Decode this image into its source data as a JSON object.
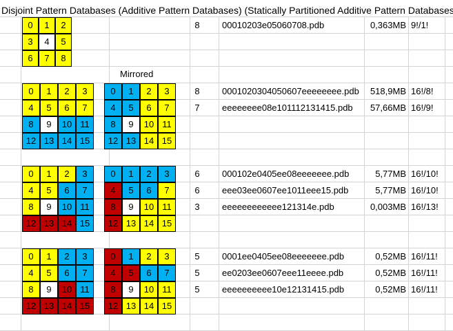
{
  "title": "Disjoint Pattern Databases (Additive Pattern Databases) (Statically Partitioned Additive Pattern Databases)",
  "mirrored_label": "Mirrored",
  "colors": {
    "yellow": "#ffff00",
    "blue": "#00b0f0",
    "red": "#c00000",
    "white": "#ffffff"
  },
  "puzzles": [
    {
      "id": "p8",
      "size": 3,
      "labels": [
        "0",
        "1",
        "2",
        "3",
        "4",
        "5",
        "6",
        "7",
        "8"
      ],
      "colors": [
        "y",
        "y",
        "y",
        "y",
        "w",
        "y",
        "y",
        "y",
        "y"
      ]
    },
    {
      "id": "g2a",
      "size": 4,
      "labels": [
        "0",
        "1",
        "2",
        "3",
        "4",
        "5",
        "6",
        "7",
        "8",
        "9",
        "10",
        "11",
        "12",
        "13",
        "14",
        "15"
      ],
      "colors": [
        "y",
        "y",
        "y",
        "y",
        "y",
        "y",
        "y",
        "y",
        "b",
        "w",
        "b",
        "b",
        "b",
        "b",
        "b",
        "b"
      ]
    },
    {
      "id": "g2b",
      "size": 4,
      "labels": [
        "0",
        "1",
        "2",
        "3",
        "4",
        "5",
        "6",
        "7",
        "8",
        "9",
        "10",
        "11",
        "12",
        "13",
        "14",
        "15"
      ],
      "colors": [
        "b",
        "b",
        "y",
        "y",
        "b",
        "b",
        "y",
        "y",
        "b",
        "w",
        "y",
        "y",
        "b",
        "b",
        "y",
        "y"
      ]
    },
    {
      "id": "g3a",
      "size": 4,
      "labels": [
        "0",
        "1",
        "2",
        "3",
        "4",
        "5",
        "6",
        "7",
        "8",
        "9",
        "10",
        "11",
        "12",
        "13",
        "14",
        "15"
      ],
      "colors": [
        "y",
        "y",
        "y",
        "b",
        "y",
        "y",
        "b",
        "b",
        "y",
        "w",
        "b",
        "b",
        "r",
        "r",
        "r",
        "b"
      ]
    },
    {
      "id": "g3b",
      "size": 4,
      "labels": [
        "0",
        "1",
        "2",
        "3",
        "4",
        "5",
        "6",
        "7",
        "8",
        "9",
        "10",
        "11",
        "12",
        "13",
        "14",
        "15"
      ],
      "colors": [
        "b",
        "b",
        "b",
        "b",
        "r",
        "b",
        "b",
        "y",
        "r",
        "w",
        "y",
        "y",
        "r",
        "y",
        "y",
        "y"
      ]
    },
    {
      "id": "g4a",
      "size": 4,
      "labels": [
        "0",
        "1",
        "2",
        "3",
        "4",
        "5",
        "6",
        "7",
        "8",
        "9",
        "10",
        "11",
        "12",
        "13",
        "14",
        "15"
      ],
      "colors": [
        "y",
        "y",
        "b",
        "b",
        "y",
        "y",
        "b",
        "b",
        "y",
        "w",
        "r",
        "b",
        "r",
        "r",
        "r",
        "r"
      ]
    },
    {
      "id": "g4b",
      "size": 4,
      "labels": [
        "0",
        "1",
        "2",
        "3",
        "4",
        "5",
        "6",
        "7",
        "8",
        "9",
        "10",
        "11",
        "12",
        "13",
        "14",
        "15"
      ],
      "colors": [
        "r",
        "b",
        "y",
        "y",
        "r",
        "r",
        "b",
        "b",
        "r",
        "w",
        "y",
        "y",
        "r",
        "y",
        "y",
        "y"
      ]
    }
  ],
  "rows": [
    {
      "n": "8",
      "file": "00010203e05060708.pdb",
      "size": "0,363MB",
      "ratio": "9!/1!"
    },
    {
      "n": "8",
      "file": "0001020304050607eeeeeeee.pdb",
      "size": "518,9MB",
      "ratio": "16!/8!"
    },
    {
      "n": "7",
      "file": "eeeeeeee08e101112131415.pdb",
      "size": "57,66MB",
      "ratio": "16!/9!"
    },
    {
      "n": "6",
      "file": "000102e0405ee08eeeeeee.pdb",
      "size": "5,77MB",
      "ratio": "16!/10!"
    },
    {
      "n": "6",
      "file": "eee03ee0607ee1011eee15.pdb",
      "size": "5,77MB",
      "ratio": "16!/10!"
    },
    {
      "n": "3",
      "file": "eeeeeeeeeeee121314e.pdb",
      "size": "0,003MB",
      "ratio": "16!/13!"
    },
    {
      "n": "5",
      "file": "0001ee0405ee08eeeeeee.pdb",
      "size": "0,52MB",
      "ratio": "16!/11!"
    },
    {
      "n": "5",
      "file": "ee0203ee0607eee11eeee.pdb",
      "size": "0,52MB",
      "ratio": "16!/11!"
    },
    {
      "n": "5",
      "file": "eeeeeeeeee10e12131415.pdb",
      "size": "0,52MB",
      "ratio": "16!/11!"
    }
  ]
}
